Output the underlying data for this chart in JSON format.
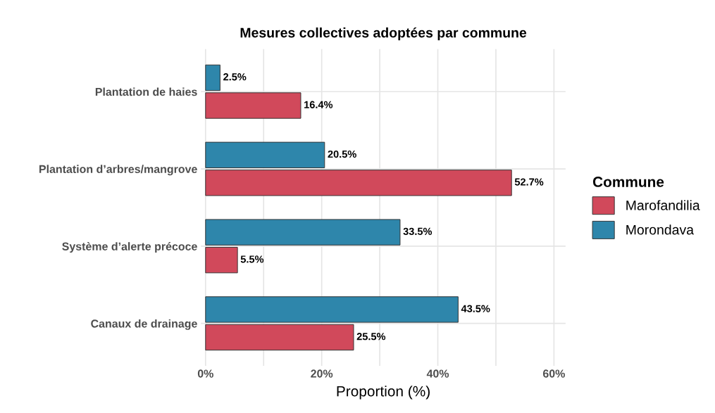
{
  "chart_data": {
    "type": "bar",
    "orientation": "horizontal",
    "title": "Mesures collectives adoptées par commune",
    "xlabel": "Proportion (%)",
    "legend_title": "Commune",
    "legend": "right",
    "categories": [
      "Plantation de haies",
      "Plantation d’arbres/mangrove",
      "Système d’alerte précoce",
      "Canaux de drainage"
    ],
    "series": [
      {
        "name": "Marofandilia",
        "color": "#d1495b",
        "values": [
          16.4,
          52.7,
          5.5,
          25.5
        ],
        "value_labels": [
          "16.4%",
          "52.7%",
          "5.5%",
          "25.5%"
        ]
      },
      {
        "name": "Morondava",
        "color": "#2e86ab",
        "values": [
          2.5,
          20.5,
          33.5,
          43.5
        ],
        "value_labels": [
          "2.5%",
          "20.5%",
          "33.5%",
          "43.5%"
        ]
      }
    ],
    "xlim": [
      -0.8,
      62
    ],
    "xticks": [
      {
        "value": 0,
        "label": "0%"
      },
      {
        "value": 10,
        "label": null
      },
      {
        "value": 20,
        "label": "20%"
      },
      {
        "value": 30,
        "label": null
      },
      {
        "value": 40,
        "label": "40%"
      },
      {
        "value": 50,
        "label": null
      },
      {
        "value": 60,
        "label": "60%"
      }
    ],
    "grid": true
  }
}
